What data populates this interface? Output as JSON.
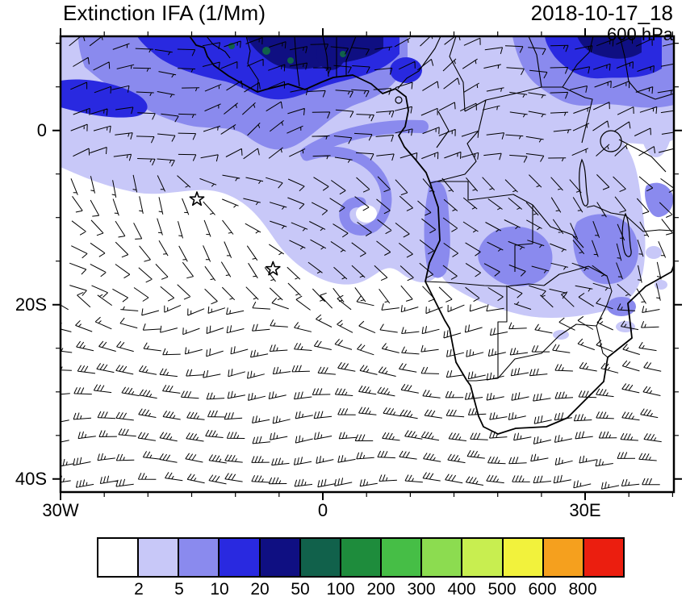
{
  "header": {
    "title": "Extinction IFA (1/Mm)",
    "datetime": "2018-10-17_18",
    "level": "600 hPa"
  },
  "chart_data": {
    "type": "map",
    "title": "Extinction IFA (1/Mm)",
    "datetime": "2018-10-17_18",
    "pressure_level": "600 hPa",
    "variable": "aerosol extinction",
    "units": "1/Mm",
    "region": {
      "lon_min": -30,
      "lon_max": 40.15,
      "lat_min": -41.5,
      "lat_max": 10.8
    },
    "x_axis": {
      "tick_labels": [
        {
          "label": "30W",
          "lon": -30
        },
        {
          "label": "0",
          "lon": 0
        },
        {
          "label": "30E",
          "lon": 30
        }
      ],
      "minor_tick_deg": 5
    },
    "y_axis": {
      "tick_labels": [
        {
          "label": "0",
          "lat": 0
        },
        {
          "label": "20S",
          "lat": -20
        },
        {
          "label": "40S",
          "lat": -40
        }
      ],
      "minor_tick_deg": 5
    },
    "colorbar": {
      "levels": [
        2,
        5,
        10,
        20,
        50,
        100,
        200,
        300,
        400,
        500,
        600,
        800
      ],
      "colors": [
        "#ffffff",
        "#c8c8f8",
        "#8a8aee",
        "#2929e0",
        "#0f0f82",
        "#11614b",
        "#1e8c3c",
        "#46be46",
        "#8cdc50",
        "#c8ee50",
        "#f2f23c",
        "#f5a01e",
        "#eb1e0f"
      ]
    },
    "overlays": {
      "coastline": "Africa, Gulf of Guinea to Mozambique",
      "wind_barbs": {
        "regimes": [
          {
            "zone": "north of 4S",
            "description": "tropical easterlies ~10-15 kt"
          },
          {
            "zone": "4S-19S",
            "description": "weak variable southeast trades"
          },
          {
            "zone": "south of 19S",
            "description": "midlatitude westerlies 15-35 kt"
          }
        ]
      },
      "markers": [
        {
          "shape": "star",
          "lon": -14.4,
          "lat": -7.9
        },
        {
          "shape": "star",
          "lon": -5.7,
          "lat": -15.9
        }
      ]
    },
    "shading_summary": [
      {
        "region": "tropical band 0-10N across Gulf of Guinea, Nigeria, Sudan/Ethiopia",
        "value_range": "10-100+ 1/Mm"
      },
      {
        "region": "central and southern Africa (DRC, Angola, Zambia, Tanzania) 0-20S",
        "value_range": "2-20 1/Mm"
      },
      {
        "region": "South Atlantic plume swirl near 5E 10S",
        "value_range": "2-10 1/Mm"
      },
      {
        "region": "ocean south of 20S",
        "value_range": "< 2 1/Mm"
      }
    ]
  }
}
